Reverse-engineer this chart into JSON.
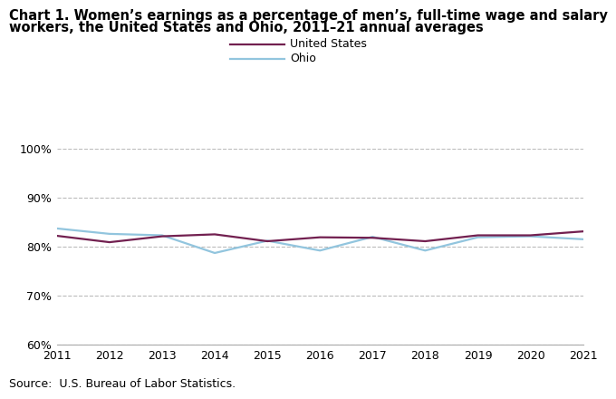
{
  "title_line1": "Chart 1. Women’s earnings as a percentage of men’s, full-time wage and salary",
  "title_line2": "workers, the United States and Ohio, 2011–21 annual averages",
  "years": [
    2011,
    2012,
    2013,
    2014,
    2015,
    2016,
    2017,
    2018,
    2019,
    2020,
    2021
  ],
  "us_values": [
    82.2,
    80.9,
    82.1,
    82.5,
    81.1,
    81.9,
    81.8,
    81.1,
    82.3,
    82.3,
    83.1
  ],
  "ohio_values": [
    83.7,
    82.6,
    82.3,
    78.7,
    81.2,
    79.2,
    82.0,
    79.2,
    81.9,
    82.1,
    81.5
  ],
  "us_color": "#722050",
  "ohio_color": "#92C5DE",
  "ylim_min": 60,
  "ylim_max": 100,
  "yticks": [
    60,
    70,
    80,
    90,
    100
  ],
  "source_text": "Source:  U.S. Bureau of Labor Statistics.",
  "legend_us": "United States",
  "legend_ohio": "Ohio",
  "background_color": "#ffffff",
  "line_width": 1.6,
  "grid_color": "#bbbbbb",
  "spine_color": "#aaaaaa",
  "tick_label_size": 9,
  "title_fontsize": 10.5,
  "source_fontsize": 9
}
